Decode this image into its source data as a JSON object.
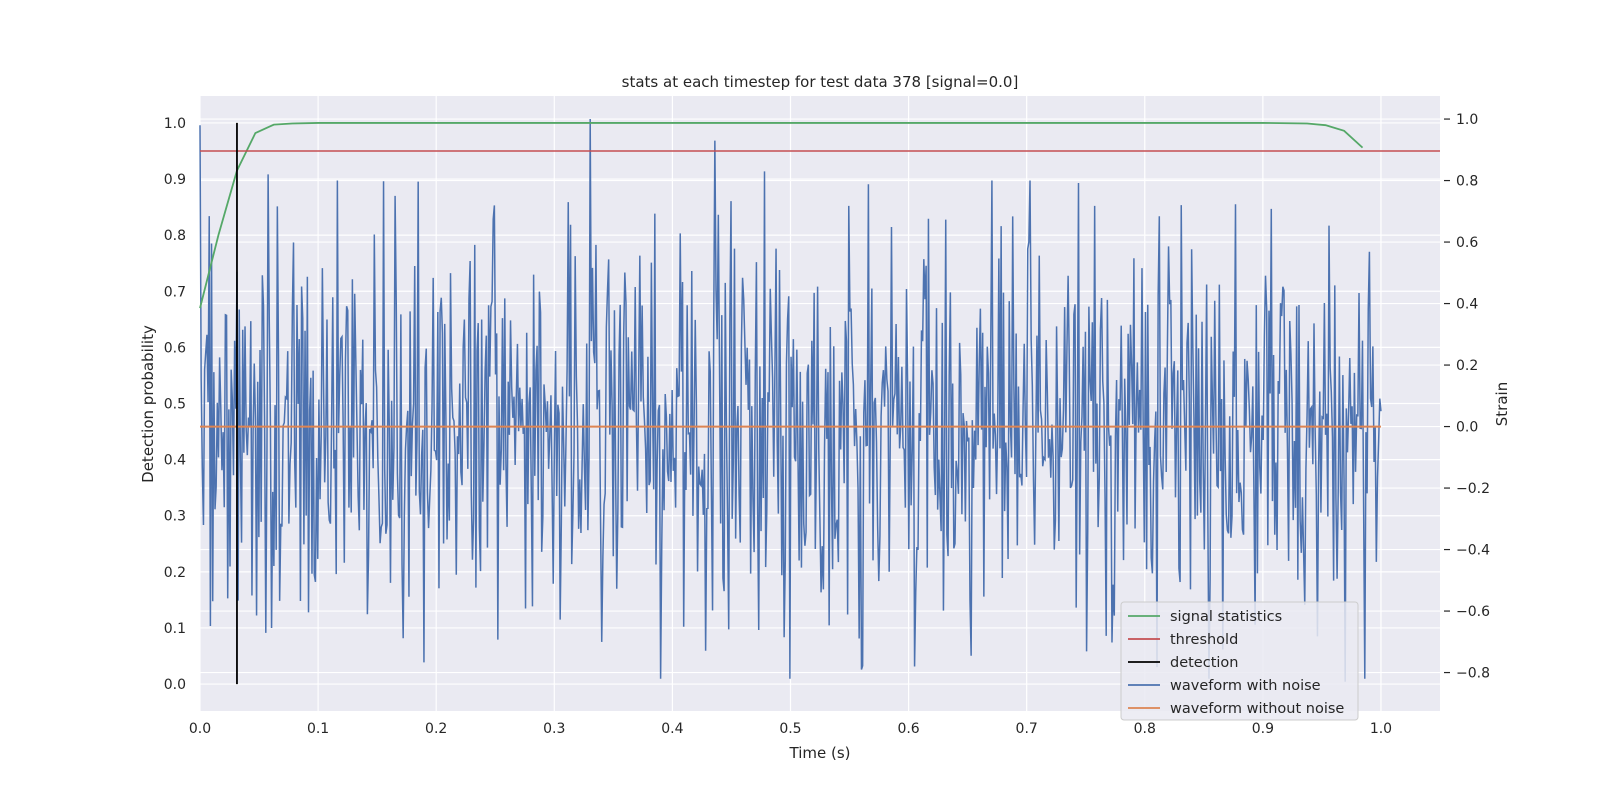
{
  "chart_data": {
    "type": "line",
    "title": "stats at each timestep for test data 378 [signal=0.0]",
    "xlabel": "Time (s)",
    "ylabel": "Detection probability",
    "y2label": "Strain",
    "xlim": [
      0.0,
      1.05
    ],
    "ylim": [
      -0.048,
      1.048
    ],
    "y2lim": [
      -0.925,
      1.075
    ],
    "xticks": [
      "0.0",
      "0.1",
      "0.2",
      "0.3",
      "0.4",
      "0.5",
      "0.6",
      "0.7",
      "0.8",
      "0.9",
      "1.0"
    ],
    "yticks": [
      "0.0",
      "0.1",
      "0.2",
      "0.3",
      "0.4",
      "0.5",
      "0.6",
      "0.7",
      "0.8",
      "0.9",
      "1.0"
    ],
    "y2ticks": [
      "−0.8",
      "−0.6",
      "−0.4",
      "−0.2",
      "0.0",
      "0.2",
      "0.4",
      "0.6",
      "0.8",
      "1.0"
    ],
    "grid": true,
    "legend_position": "lower-right",
    "colors": {
      "signal_statistics": "#55a868",
      "threshold": "#c44e52",
      "detection": "#000000",
      "waveform_with_noise": "#4c72b0",
      "waveform_without_noise": "#dd8452",
      "background": "#eaeaf2",
      "grid": "#ffffff"
    },
    "series": [
      {
        "name": "signal statistics",
        "axis": "left",
        "x": [
          0.0,
          0.0156,
          0.0313,
          0.0469,
          0.0625,
          0.0781,
          0.1,
          0.2,
          0.4,
          0.6,
          0.8,
          0.9,
          0.9375,
          0.9531,
          0.9688,
          0.9844
        ],
        "values": [
          0.67,
          0.8,
          0.915,
          0.982,
          0.997,
          0.999,
          1.0,
          1.0,
          1.0,
          1.0,
          1.0,
          1.0,
          0.999,
          0.996,
          0.986,
          0.956
        ]
      },
      {
        "name": "threshold",
        "axis": "left",
        "x": [
          0.0,
          1.05
        ],
        "values": [
          0.95,
          0.95
        ]
      },
      {
        "name": "detection",
        "axis": "left",
        "x": [
          0.0313,
          0.0313
        ],
        "values": [
          0.0,
          1.0
        ]
      },
      {
        "name": "waveform with noise",
        "axis": "right",
        "x_start": 0.0,
        "x_end": 1.0,
        "description_points": [
          [
            0.0,
            0.98
          ],
          [
            0.058,
            0.82
          ],
          [
            0.165,
            0.75
          ],
          [
            0.33,
            1.0
          ],
          [
            0.39,
            -0.82
          ],
          [
            0.436,
            0.93
          ],
          [
            0.478,
            0.83
          ],
          [
            0.56,
            -0.79
          ],
          [
            0.831,
            0.72
          ],
          [
            0.97,
            -0.83
          ],
          [
            1.0,
            0.05
          ]
        ],
        "values": []
      },
      {
        "name": "waveform without noise",
        "axis": "right",
        "x": [
          0.0,
          1.0
        ],
        "values": [
          0.0,
          0.0
        ]
      }
    ]
  }
}
